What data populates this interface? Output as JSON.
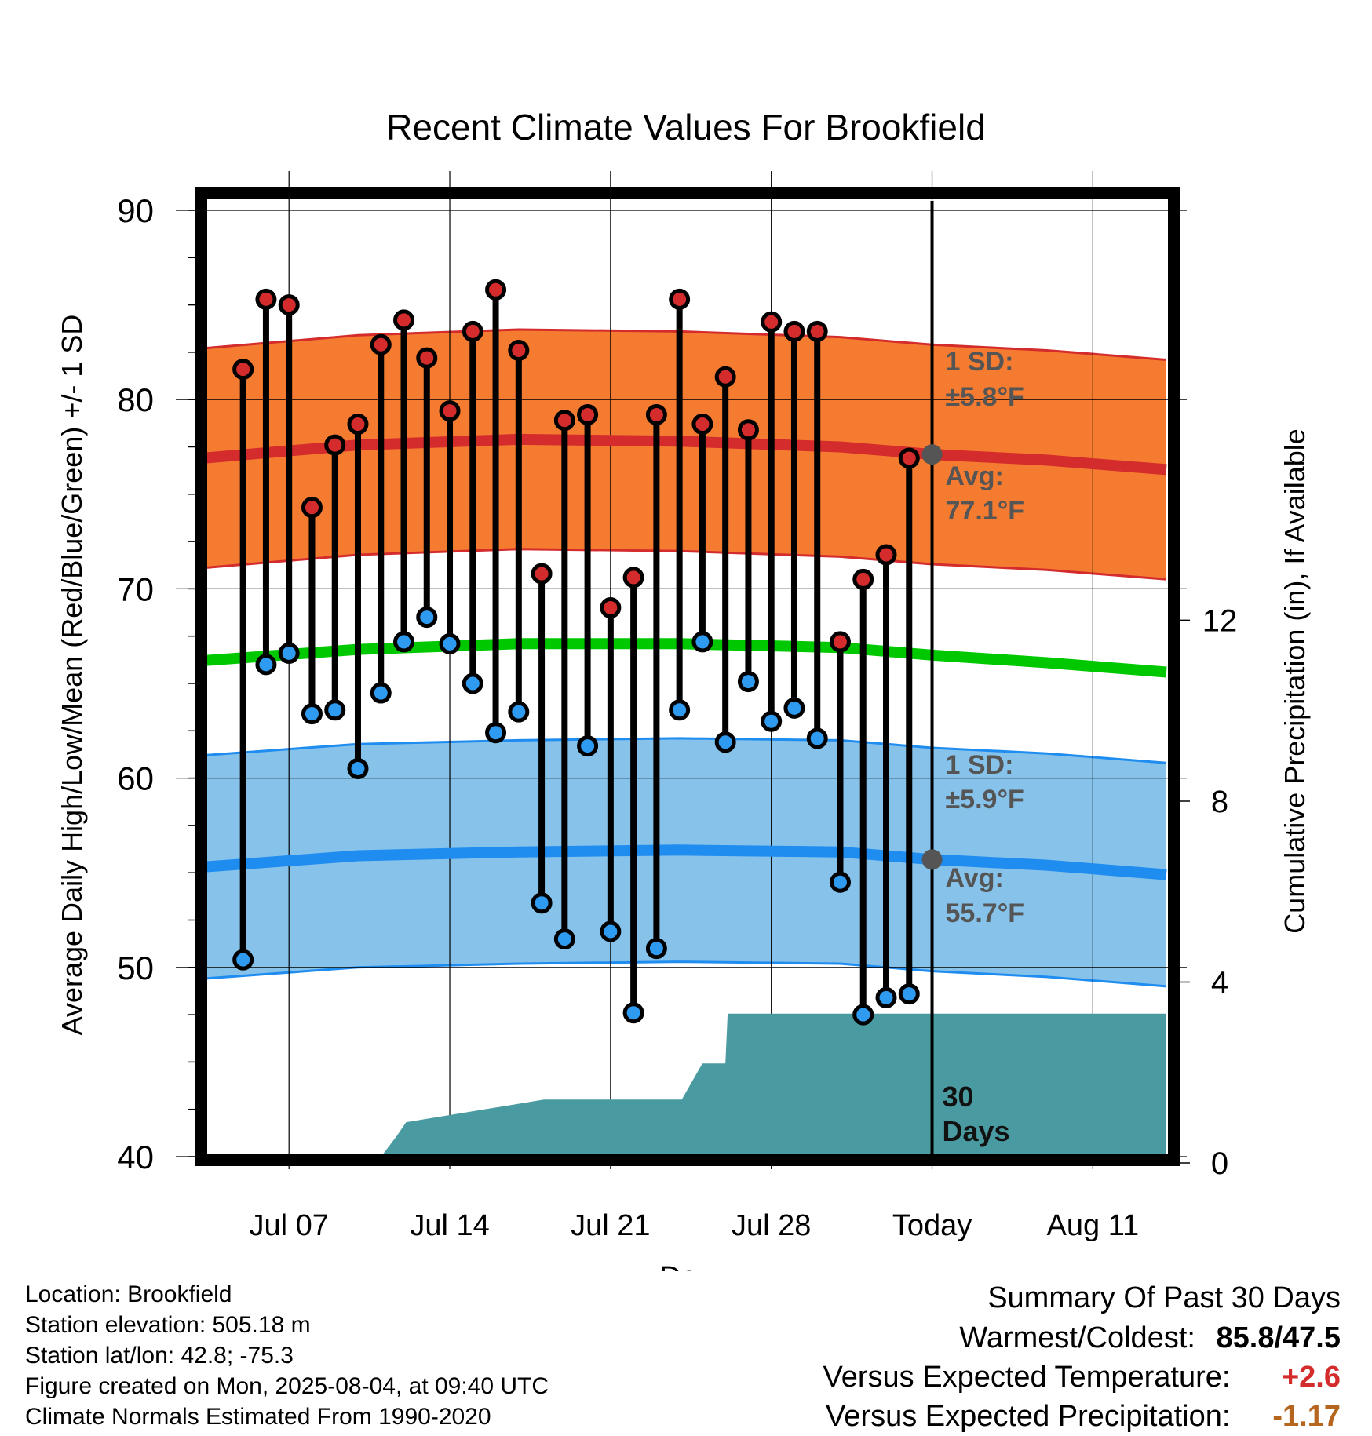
{
  "chart_data": {
    "type": "line",
    "title": "Recent Climate Values For Brookfield",
    "xlabel": "Day",
    "ylabel": "Average Daily High/Low/Mean (Red/Blue/Green) +/- 1 SD",
    "ylabel_right": "Cumulative Precipitation (in), If Available",
    "ylim": [
      40,
      90
    ],
    "ylim_right": [
      0,
      24.5
    ],
    "xlim_days": [
      -1.8,
      40.2
    ],
    "x_ticks": [
      "Jul 07",
      "Jul 14",
      "Jul 21",
      "Jul 28",
      "Today",
      "Aug 11"
    ],
    "y_ticks": [
      40,
      50,
      60,
      70,
      80,
      90
    ],
    "y_right_ticks": [
      0,
      4,
      8,
      12
    ],
    "grid": true,
    "colors": {
      "high_band": "#f47b30",
      "high_line": "#d42c2c",
      "low_band": "#86c2ea",
      "low_line": "#1f8cf0",
      "mean_line": "#00c800",
      "precip_fill": "#4a9aa2",
      "high_dot": "#d42c2c",
      "low_dot": "#2e9af0",
      "today_marker": "#555555"
    },
    "days": [
      "Jul 05",
      "Jul 06",
      "Jul 07",
      "Jul 08",
      "Jul 09",
      "Jul 10",
      "Jul 11",
      "Jul 12",
      "Jul 13",
      "Jul 14",
      "Jul 15",
      "Jul 16",
      "Jul 17",
      "Jul 18",
      "Jul 19",
      "Jul 20",
      "Jul 21",
      "Jul 22",
      "Jul 23",
      "Jul 24",
      "Jul 25",
      "Jul 26",
      "Jul 27",
      "Jul 28",
      "Jul 29",
      "Jul 30",
      "Jul 31",
      "Aug 01",
      "Aug 02",
      "Aug 03"
    ],
    "highs": [
      81.6,
      85.3,
      85.0,
      74.3,
      77.6,
      78.7,
      82.9,
      84.2,
      82.2,
      79.4,
      83.6,
      85.8,
      82.6,
      70.8,
      78.9,
      79.2,
      69.0,
      70.6,
      79.2,
      85.3,
      78.7,
      81.2,
      78.4,
      84.1,
      83.6,
      83.6,
      67.2,
      70.5,
      71.8,
      76.9
    ],
    "lows": [
      50.4,
      66.0,
      66.6,
      63.4,
      63.6,
      60.5,
      64.5,
      67.2,
      68.5,
      67.1,
      65.0,
      62.4,
      63.5,
      53.4,
      51.5,
      61.7,
      51.9,
      47.6,
      51.0,
      63.6,
      67.2,
      61.9,
      65.1,
      63.0,
      63.7,
      62.1,
      54.5,
      47.5,
      48.4,
      48.6
    ],
    "normal_x": [
      -1.8,
      5,
      12,
      19,
      26,
      30,
      35,
      40.2
    ],
    "normal_high": [
      76.9,
      77.6,
      77.9,
      77.8,
      77.5,
      77.1,
      76.8,
      76.3
    ],
    "normal_low": [
      55.3,
      55.9,
      56.1,
      56.2,
      56.1,
      55.7,
      55.4,
      54.9
    ],
    "normal_mean": [
      66.2,
      66.8,
      67.1,
      67.1,
      66.9,
      66.5,
      66.1,
      65.6
    ],
    "high_sd": 5.8,
    "low_sd": 5.9,
    "precip_x": [
      5.8,
      6.7,
      7.1,
      13.1,
      13.2,
      19.1,
      20.0,
      21.0,
      21.1,
      40.2
    ],
    "precip_y": [
      0,
      0.6,
      0.9,
      1.4,
      1.4,
      1.4,
      2.2,
      2.2,
      3.3,
      3.3
    ],
    "annotations": {
      "high_sd": "1 SD:",
      "high_sd_val": "±5.8°F",
      "high_avg": "Avg:",
      "high_avg_val": "77.1°F",
      "low_sd": "1 SD:",
      "low_sd_val": "±5.9°F",
      "low_avg": "Avg:",
      "low_avg_val": "55.7°F",
      "window_1": "30",
      "window_2": "Days"
    }
  },
  "footer": {
    "location": "Location: Brookfield",
    "elevation": "Station elevation: 505.18 m",
    "latlon": "Station lat/lon: 42.8; -75.3",
    "created": "Figure created on Mon, 2025-08-04, at 09:40 UTC",
    "normals": "Climate Normals Estimated From 1990-2020"
  },
  "summary": {
    "title": "Summary Of Past 30 Days",
    "warm_cold_label": "Warmest/Coldest:",
    "warm_cold_value": "85.8/47.5",
    "temp_label": "Versus Expected Temperature:",
    "temp_value": "+2.6",
    "temp_color": "#d42c2c",
    "precip_label": "Versus Expected Precipitation:",
    "precip_value": "-1.17",
    "precip_color": "#b5651d"
  }
}
